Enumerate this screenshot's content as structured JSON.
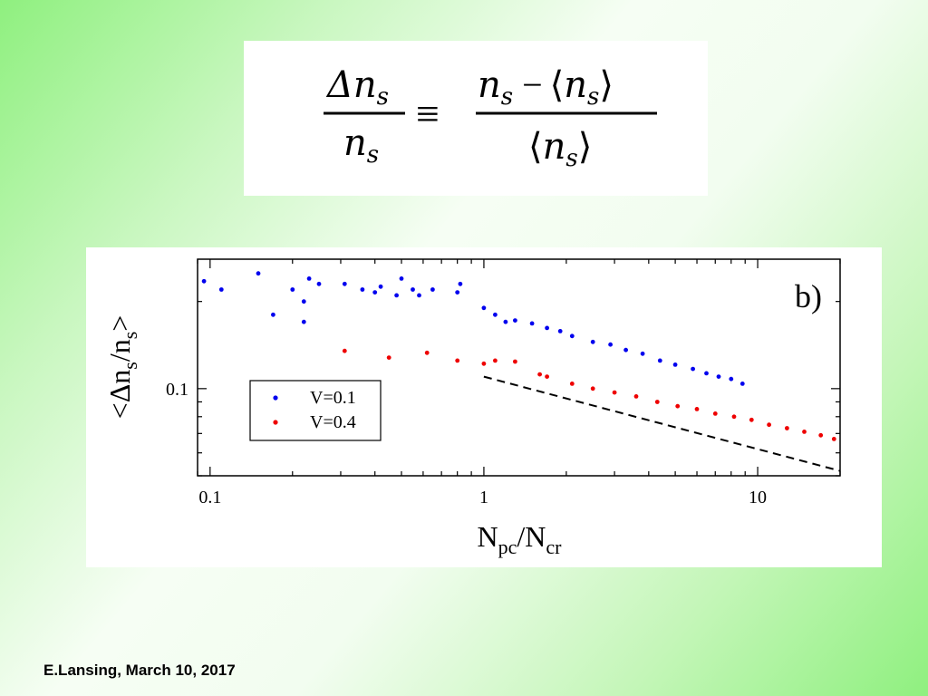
{
  "formula": {
    "lhs_num": "Δn",
    "lhs_num_sub": "s",
    "lhs_den": "n",
    "lhs_den_sub": "s",
    "equiv": "≡",
    "rhs_num_a": "n",
    "rhs_num_a_sub": "s",
    "rhs_num_minus": "−",
    "rhs_num_b_open": "⟨",
    "rhs_num_b": "n",
    "rhs_num_b_sub": "s",
    "rhs_num_b_close": "⟩",
    "rhs_den_open": "⟨",
    "rhs_den": "n",
    "rhs_den_sub": "s",
    "rhs_den_close": "⟩"
  },
  "chart_data": {
    "type": "scatter",
    "panel_label": "b)",
    "xlabel": "N",
    "xlabel_sub1": "pc",
    "xlabel_sep": "/N",
    "xlabel_sub2": "cr",
    "ylabel": "<Δn",
    "ylabel_sub1": "s",
    "ylabel_sep": "/n",
    "ylabel_sub2": "s",
    "ylabel_end": ">",
    "xscale": "log",
    "yscale": "log",
    "xlim": [
      0.09,
      20
    ],
    "ylim": [
      0.05,
      0.28
    ],
    "x_tick_labels": [
      "0.1",
      "1",
      "10"
    ],
    "x_ticks": [
      0.1,
      1,
      10
    ],
    "y_tick_labels": [
      "0.1"
    ],
    "y_ticks": [
      0.1
    ],
    "grid": false,
    "legend_position": "lower-left",
    "series": [
      {
        "name": "V=0.1",
        "color": "#0000ee",
        "x": [
          0.095,
          0.11,
          0.15,
          0.17,
          0.2,
          0.22,
          0.22,
          0.23,
          0.25,
          0.31,
          0.36,
          0.4,
          0.42,
          0.48,
          0.5,
          0.55,
          0.58,
          0.65,
          0.8,
          0.82,
          1.0,
          1.1,
          1.2,
          1.3,
          1.5,
          1.7,
          1.9,
          2.1,
          2.5,
          2.9,
          3.3,
          3.8,
          4.4,
          5.0,
          5.8,
          6.5,
          7.2,
          8.0,
          8.8
        ],
        "y": [
          0.235,
          0.22,
          0.25,
          0.18,
          0.22,
          0.2,
          0.17,
          0.24,
          0.23,
          0.23,
          0.22,
          0.215,
          0.225,
          0.21,
          0.24,
          0.22,
          0.21,
          0.22,
          0.215,
          0.23,
          0.19,
          0.18,
          0.17,
          0.172,
          0.168,
          0.162,
          0.158,
          0.152,
          0.145,
          0.142,
          0.136,
          0.132,
          0.125,
          0.121,
          0.117,
          0.113,
          0.11,
          0.108,
          0.104
        ]
      },
      {
        "name": "V=0.4",
        "color": "#ee0000",
        "x": [
          0.31,
          0.45,
          0.62,
          0.8,
          1.0,
          1.1,
          1.3,
          1.6,
          1.7,
          2.1,
          2.5,
          3.0,
          3.6,
          4.3,
          5.1,
          6.0,
          7.0,
          8.2,
          9.5,
          11.0,
          12.8,
          14.8,
          17.0,
          19.0
        ],
        "y": [
          0.135,
          0.128,
          0.133,
          0.125,
          0.122,
          0.125,
          0.124,
          0.112,
          0.11,
          0.104,
          0.1,
          0.097,
          0.094,
          0.09,
          0.087,
          0.085,
          0.082,
          0.08,
          0.078,
          0.075,
          0.073,
          0.071,
          0.069,
          0.067
        ]
      }
    ],
    "reference_line": {
      "style": "dashed",
      "x": [
        1,
        20
      ],
      "y": [
        0.11,
        0.052
      ]
    }
  },
  "footer": {
    "text": "E.Lansing, March 10, 2017"
  }
}
